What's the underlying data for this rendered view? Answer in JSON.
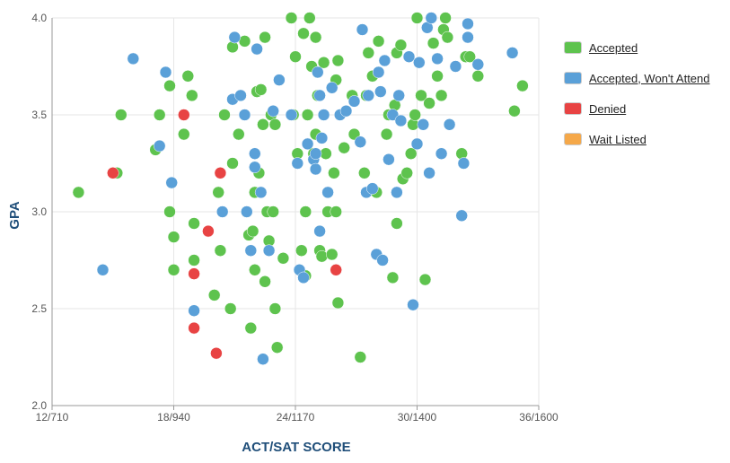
{
  "chart_data": {
    "type": "scatter",
    "xlabel": "ACT/SAT SCORE",
    "ylabel": "GPA",
    "xlim": [
      12,
      36
    ],
    "ylim": [
      2.0,
      4.0
    ],
    "x_ticks": [
      {
        "value": 12,
        "label": "12/710"
      },
      {
        "value": 18,
        "label": "18/940"
      },
      {
        "value": 24,
        "label": "24/1170"
      },
      {
        "value": 30,
        "label": "30/1400"
      },
      {
        "value": 36,
        "label": "36/1600"
      }
    ],
    "y_ticks": [
      {
        "value": 2.0,
        "label": "2.0"
      },
      {
        "value": 2.5,
        "label": "2.5"
      },
      {
        "value": 3.0,
        "label": "3.0"
      },
      {
        "value": 3.5,
        "label": "3.5"
      },
      {
        "value": 4.0,
        "label": "4.0"
      }
    ],
    "grid": true,
    "legend_position": "right",
    "series": [
      {
        "name": "Accepted",
        "color": "#5ec34e",
        "points": [
          [
            13.3,
            3.1
          ],
          [
            15.2,
            3.2
          ],
          [
            15.4,
            3.5
          ],
          [
            17.1,
            3.32
          ],
          [
            17.3,
            3.5
          ],
          [
            17.8,
            3.65
          ],
          [
            17.8,
            3.0
          ],
          [
            18.0,
            2.87
          ],
          [
            18.0,
            2.7
          ],
          [
            18.5,
            3.4
          ],
          [
            18.7,
            3.7
          ],
          [
            18.9,
            3.6
          ],
          [
            19.0,
            2.94
          ],
          [
            19.0,
            2.75
          ],
          [
            20.0,
            2.57
          ],
          [
            20.2,
            3.1
          ],
          [
            20.3,
            2.8
          ],
          [
            20.5,
            3.5
          ],
          [
            20.8,
            2.5
          ],
          [
            20.9,
            3.25
          ],
          [
            20.9,
            3.85
          ],
          [
            21.2,
            3.4
          ],
          [
            21.5,
            3.88
          ],
          [
            21.6,
            3.0
          ],
          [
            21.7,
            2.88
          ],
          [
            21.8,
            2.4
          ],
          [
            21.9,
            2.9
          ],
          [
            22.0,
            2.7
          ],
          [
            22.0,
            3.1
          ],
          [
            22.1,
            3.62
          ],
          [
            22.2,
            3.2
          ],
          [
            22.3,
            3.63
          ],
          [
            22.4,
            3.45
          ],
          [
            22.5,
            2.64
          ],
          [
            22.5,
            3.9
          ],
          [
            22.6,
            3.0
          ],
          [
            22.7,
            2.85
          ],
          [
            22.8,
            3.5
          ],
          [
            22.9,
            3.0
          ],
          [
            23.0,
            2.5
          ],
          [
            23.0,
            3.45
          ],
          [
            23.1,
            2.3
          ],
          [
            23.4,
            2.76
          ],
          [
            23.8,
            4.0
          ],
          [
            23.9,
            3.5
          ],
          [
            24.0,
            3.8
          ],
          [
            24.1,
            3.3
          ],
          [
            24.3,
            2.8
          ],
          [
            24.4,
            3.92
          ],
          [
            24.5,
            2.67
          ],
          [
            24.5,
            3.0
          ],
          [
            24.6,
            3.5
          ],
          [
            24.7,
            4.0
          ],
          [
            24.8,
            3.75
          ],
          [
            24.9,
            3.3
          ],
          [
            25.0,
            3.4
          ],
          [
            25.0,
            3.9
          ],
          [
            25.1,
            3.6
          ],
          [
            25.2,
            2.8
          ],
          [
            25.3,
            2.77
          ],
          [
            25.4,
            3.77
          ],
          [
            25.5,
            3.3
          ],
          [
            25.6,
            3.0
          ],
          [
            25.8,
            2.78
          ],
          [
            25.9,
            3.2
          ],
          [
            26.0,
            3.0
          ],
          [
            26.0,
            3.68
          ],
          [
            26.1,
            3.78
          ],
          [
            26.1,
            2.53
          ],
          [
            26.4,
            3.33
          ],
          [
            26.8,
            3.6
          ],
          [
            26.9,
            3.4
          ],
          [
            27.2,
            2.25
          ],
          [
            27.4,
            3.2
          ],
          [
            27.5,
            3.6
          ],
          [
            27.6,
            3.82
          ],
          [
            27.8,
            3.7
          ],
          [
            28.0,
            3.1
          ],
          [
            28.1,
            3.88
          ],
          [
            28.5,
            3.4
          ],
          [
            28.6,
            3.5
          ],
          [
            28.8,
            2.66
          ],
          [
            28.9,
            3.55
          ],
          [
            29.0,
            2.94
          ],
          [
            29.0,
            3.82
          ],
          [
            29.2,
            3.86
          ],
          [
            29.3,
            3.17
          ],
          [
            29.5,
            3.2
          ],
          [
            29.7,
            3.3
          ],
          [
            29.8,
            3.45
          ],
          [
            29.9,
            3.5
          ],
          [
            30.0,
            4.0
          ],
          [
            30.2,
            3.6
          ],
          [
            30.4,
            2.65
          ],
          [
            30.6,
            3.56
          ],
          [
            30.8,
            3.87
          ],
          [
            31.0,
            3.7
          ],
          [
            31.2,
            3.6
          ],
          [
            31.3,
            3.94
          ],
          [
            31.4,
            4.0
          ],
          [
            31.5,
            3.9
          ],
          [
            32.2,
            3.3
          ],
          [
            32.4,
            3.8
          ],
          [
            32.6,
            3.8
          ],
          [
            33.0,
            3.7
          ],
          [
            34.8,
            3.52
          ],
          [
            35.2,
            3.65
          ]
        ]
      },
      {
        "name": "Accepted, Won't Attend",
        "color": "#5aa0d8",
        "points": [
          [
            14.5,
            2.7
          ],
          [
            16.0,
            3.79
          ],
          [
            17.3,
            3.34
          ],
          [
            17.6,
            3.72
          ],
          [
            17.9,
            3.15
          ],
          [
            19.0,
            2.49
          ],
          [
            20.4,
            3.0
          ],
          [
            20.9,
            3.58
          ],
          [
            21.0,
            3.9
          ],
          [
            21.3,
            3.6
          ],
          [
            21.5,
            3.5
          ],
          [
            21.6,
            3.0
          ],
          [
            21.8,
            2.8
          ],
          [
            22.0,
            3.23
          ],
          [
            22.0,
            3.3
          ],
          [
            22.1,
            3.84
          ],
          [
            22.3,
            3.1
          ],
          [
            22.4,
            2.24
          ],
          [
            22.7,
            2.8
          ],
          [
            22.9,
            3.52
          ],
          [
            23.2,
            3.68
          ],
          [
            23.8,
            3.5
          ],
          [
            24.1,
            3.25
          ],
          [
            24.2,
            2.7
          ],
          [
            24.4,
            2.66
          ],
          [
            24.6,
            3.35
          ],
          [
            24.9,
            3.27
          ],
          [
            25.0,
            3.22
          ],
          [
            25.0,
            3.3
          ],
          [
            25.1,
            3.72
          ],
          [
            25.2,
            2.9
          ],
          [
            25.2,
            3.6
          ],
          [
            25.3,
            3.38
          ],
          [
            25.4,
            3.5
          ],
          [
            25.6,
            3.1
          ],
          [
            25.8,
            3.64
          ],
          [
            26.2,
            3.5
          ],
          [
            26.5,
            3.52
          ],
          [
            26.9,
            3.57
          ],
          [
            27.2,
            3.36
          ],
          [
            27.3,
            3.94
          ],
          [
            27.5,
            3.1
          ],
          [
            27.6,
            3.6
          ],
          [
            27.8,
            3.12
          ],
          [
            28.0,
            2.78
          ],
          [
            28.1,
            3.72
          ],
          [
            28.2,
            3.62
          ],
          [
            28.3,
            2.75
          ],
          [
            28.4,
            3.78
          ],
          [
            28.6,
            3.27
          ],
          [
            28.8,
            3.5
          ],
          [
            29.0,
            3.1
          ],
          [
            29.1,
            3.6
          ],
          [
            29.2,
            3.47
          ],
          [
            29.6,
            3.8
          ],
          [
            29.8,
            2.52
          ],
          [
            30.0,
            3.35
          ],
          [
            30.1,
            3.77
          ],
          [
            30.3,
            3.45
          ],
          [
            30.5,
            3.95
          ],
          [
            30.6,
            3.2
          ],
          [
            30.7,
            4.0
          ],
          [
            31.0,
            3.79
          ],
          [
            31.2,
            3.3
          ],
          [
            31.6,
            3.45
          ],
          [
            31.9,
            3.75
          ],
          [
            32.2,
            2.98
          ],
          [
            32.3,
            3.25
          ],
          [
            32.5,
            3.9
          ],
          [
            32.5,
            3.97
          ],
          [
            33.0,
            3.76
          ],
          [
            34.7,
            3.82
          ]
        ]
      },
      {
        "name": "Denied",
        "color": "#e84343",
        "points": [
          [
            15.0,
            3.2
          ],
          [
            18.5,
            3.5
          ],
          [
            19.0,
            2.68
          ],
          [
            19.0,
            2.4
          ],
          [
            19.7,
            2.9
          ],
          [
            20.1,
            2.27
          ],
          [
            20.3,
            3.2
          ],
          [
            26.0,
            2.7
          ]
        ]
      },
      {
        "name": "Wait Listed",
        "color": "#f5a849",
        "points": []
      }
    ]
  }
}
